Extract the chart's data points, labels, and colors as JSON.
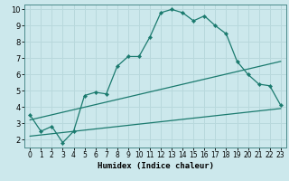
{
  "xlabel": "Humidex (Indice chaleur)",
  "ylabel": "",
  "xlim": [
    -0.5,
    23.5
  ],
  "ylim": [
    1.5,
    10.3
  ],
  "xticks": [
    0,
    1,
    2,
    3,
    4,
    5,
    6,
    7,
    8,
    9,
    10,
    11,
    12,
    13,
    14,
    15,
    16,
    17,
    18,
    19,
    20,
    21,
    22,
    23
  ],
  "yticks": [
    2,
    3,
    4,
    5,
    6,
    7,
    8,
    9,
    10
  ],
  "bg_color": "#cce8ec",
  "line_color": "#1a7a6e",
  "grid_color": "#b0d8dc",
  "curve1_x": [
    0,
    1,
    2,
    3,
    4,
    5,
    6,
    7,
    8,
    9,
    10,
    11,
    12,
    13,
    14,
    15,
    16,
    17,
    18,
    19,
    20,
    21,
    22,
    23
  ],
  "curve1_y": [
    3.5,
    2.5,
    2.8,
    1.8,
    2.5,
    4.7,
    4.9,
    4.8,
    6.5,
    7.1,
    7.1,
    8.3,
    9.8,
    10.0,
    9.8,
    9.3,
    9.6,
    9.0,
    8.5,
    6.8,
    6.0,
    5.4,
    5.3,
    4.1
  ],
  "curve2_x": [
    0,
    23
  ],
  "curve2_y": [
    3.2,
    6.8
  ],
  "curve3_x": [
    0,
    23
  ],
  "curve3_y": [
    2.2,
    3.9
  ]
}
